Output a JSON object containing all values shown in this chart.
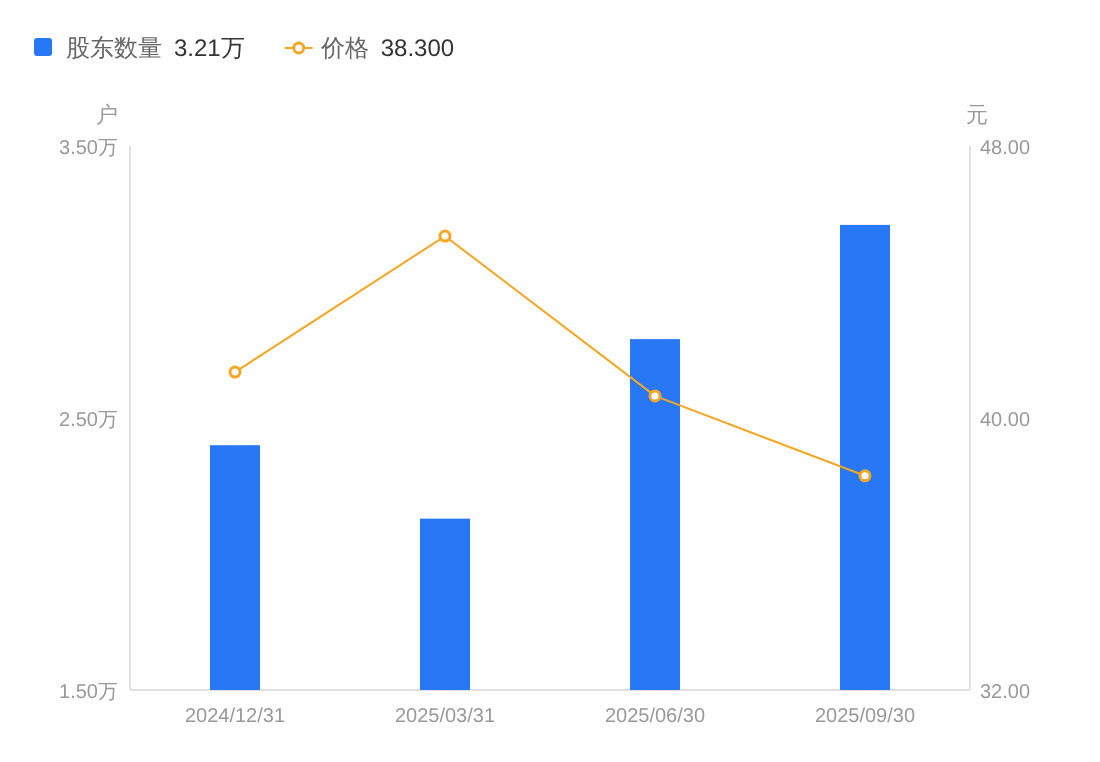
{
  "chart_data": {
    "type": "bar",
    "categories": [
      "2024/12/31",
      "2025/03/31",
      "2025/06/30",
      "2025/09/30"
    ],
    "series": [
      {
        "name": "股东数量",
        "color": "#2878f5",
        "values": [
          2.4,
          2.13,
          2.79,
          3.21
        ]
      },
      {
        "name": "价格",
        "type": "line",
        "axis": "y2",
        "color": "#f5a623",
        "values": [
          41.35,
          45.35,
          40.65,
          38.3
        ]
      }
    ],
    "annotations": [
      "3.21万",
      "38.300"
    ],
    "ylabel": "户",
    "y2label": "元",
    "ylim": [
      1.5,
      3.5
    ],
    "yticks": [
      {
        "value": 1.5,
        "label": "1.50万"
      },
      {
        "value": 2.5,
        "label": "2.50万"
      },
      {
        "value": 3.5,
        "label": "3.50万"
      }
    ],
    "y2lim": [
      32,
      48
    ],
    "y2ticks": [
      {
        "value": 32,
        "label": "32.00"
      },
      {
        "value": 40,
        "label": "40.00"
      },
      {
        "value": 48,
        "label": "48.00"
      }
    ],
    "marker": "circle",
    "legend": "top left",
    "grid": false
  }
}
